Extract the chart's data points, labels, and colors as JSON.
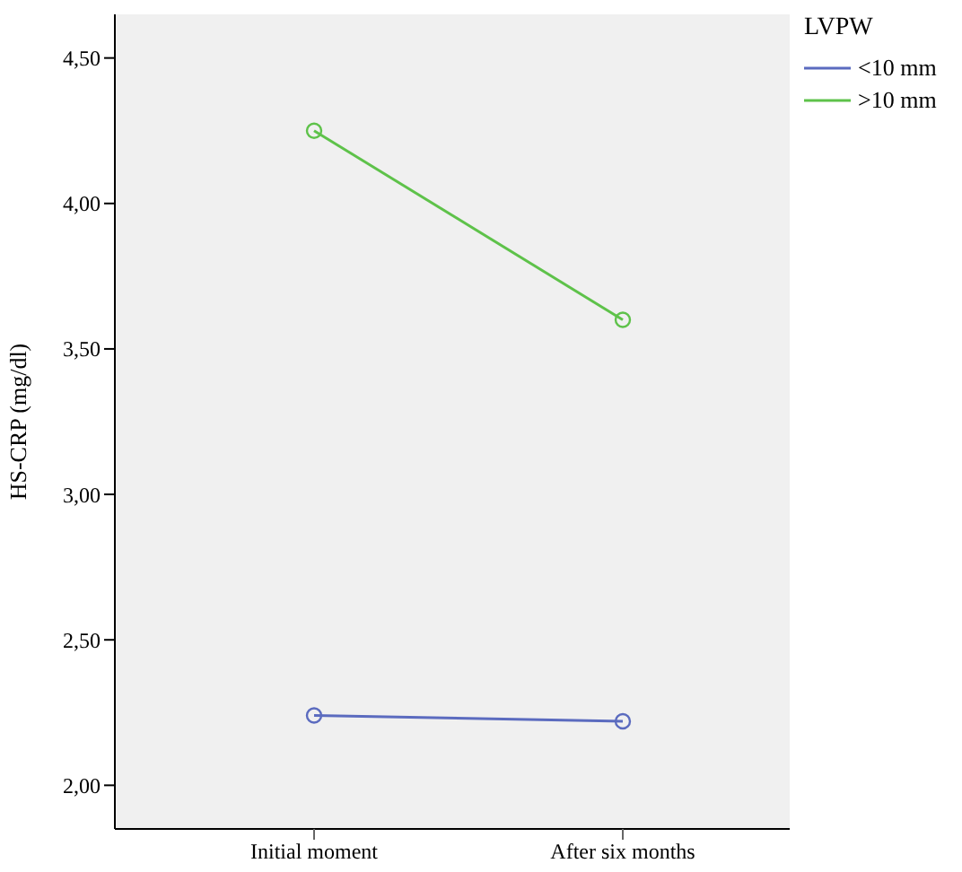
{
  "chart_data": {
    "type": "line",
    "ylabel": "HS-CRP (mg/dl)",
    "legend_title": "LVPW",
    "categories": [
      "Initial moment",
      "After six months"
    ],
    "series": [
      {
        "name": "<10 mm",
        "color": "#5b6bbf",
        "values": [
          2.24,
          2.22
        ]
      },
      {
        "name": ">10 mm",
        "color": "#5ec24a",
        "values": [
          4.25,
          3.6
        ]
      }
    ],
    "ylim": [
      1.85,
      4.65
    ],
    "yticks": [
      {
        "value": 2,
        "label": "2,00"
      },
      {
        "value": 2.5,
        "label": "2,50"
      },
      {
        "value": 3,
        "label": "3,00"
      },
      {
        "value": 3.5,
        "label": "3,50"
      },
      {
        "value": 4,
        "label": "4,00"
      },
      {
        "value": 4.5,
        "label": "4,50"
      }
    ],
    "marker": "circle",
    "legend": "top right",
    "grid": false
  }
}
